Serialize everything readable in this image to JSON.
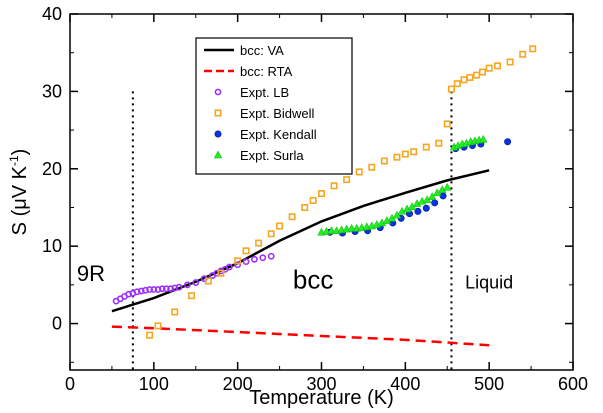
{
  "chart_data": {
    "type": "scatter",
    "xlabel": "Temperature (K)",
    "ylabel": "S (μV K⁻¹)",
    "ylabel_parts": {
      "main": "S (μV K",
      "sup": "-1",
      "close": ")"
    },
    "xlim": [
      0,
      600
    ],
    "ylim": [
      -6,
      40
    ],
    "x_ticks": [
      0,
      100,
      200,
      300,
      400,
      500,
      600
    ],
    "y_ticks": [
      0,
      10,
      20,
      30,
      40
    ],
    "x_tick_labels": [
      "0",
      "100",
      "200",
      "300",
      "400",
      "500",
      "600"
    ],
    "y_tick_labels": [
      "0",
      "10",
      "20",
      "30",
      "40"
    ],
    "grid": false,
    "legend_position": "top-center",
    "vlines": [
      75,
      455
    ],
    "region_labels": [
      {
        "text": "9R",
        "x": 25,
        "y": 5.5
      },
      {
        "text": "bcc",
        "x": 290,
        "y": 4.5
      },
      {
        "text": "Liquid",
        "x": 500,
        "y": 4.5
      }
    ],
    "series": [
      {
        "name": "bcc: VA",
        "kind": "line",
        "color": "#000000",
        "dash": "solid",
        "x": [
          50,
          100,
          150,
          200,
          250,
          300,
          350,
          400,
          450,
          500
        ],
        "y": [
          1.6,
          3.3,
          5.4,
          7.8,
          10.7,
          13.2,
          15.2,
          16.9,
          18.5,
          19.8
        ]
      },
      {
        "name": "bcc: RTA",
        "kind": "line",
        "color": "#ff0000",
        "dash": "dashed",
        "x": [
          50,
          100,
          200,
          300,
          400,
          500
        ],
        "y": [
          -0.4,
          -0.6,
          -1.1,
          -1.6,
          -2.1,
          -2.8
        ]
      },
      {
        "name": "Expt. LB",
        "kind": "scatter",
        "marker": "circle-open",
        "color": "#9b30ff",
        "x": [
          55,
          60,
          65,
          70,
          75,
          80,
          85,
          90,
          95,
          100,
          105,
          110,
          115,
          120,
          125,
          130,
          140,
          150,
          160,
          170,
          175,
          180,
          185,
          190,
          200,
          210,
          220,
          230,
          240
        ],
        "y": [
          2.9,
          3.2,
          3.5,
          3.8,
          3.9,
          4.1,
          4.2,
          4.3,
          4.4,
          4.4,
          4.4,
          4.5,
          4.5,
          4.5,
          4.6,
          4.7,
          5.0,
          5.3,
          5.8,
          6.2,
          6.5,
          6.8,
          7.0,
          7.3,
          7.6,
          8.0,
          8.3,
          8.5,
          8.7
        ]
      },
      {
        "name": "Expt. Bidwell",
        "kind": "scatter",
        "marker": "square-open",
        "color": "#f5a623",
        "x": [
          95,
          105,
          125,
          145,
          165,
          180,
          200,
          210,
          225,
          240,
          250,
          265,
          280,
          290,
          300,
          315,
          330,
          345,
          360,
          375,
          390,
          400,
          410,
          425,
          440,
          450,
          455,
          462,
          470,
          477,
          485,
          492,
          500,
          510,
          525,
          540,
          552
        ],
        "y": [
          -1.5,
          -0.3,
          1.5,
          3.6,
          5.5,
          6.5,
          8.1,
          9.4,
          10.4,
          11.6,
          12.6,
          13.8,
          15.0,
          15.9,
          16.8,
          17.8,
          18.6,
          19.6,
          20.2,
          21.0,
          21.5,
          21.9,
          22.2,
          22.8,
          23.3,
          25.8,
          30.3,
          31.0,
          31.5,
          31.8,
          32.1,
          32.5,
          33.0,
          33.3,
          33.8,
          34.8,
          35.5
        ]
      },
      {
        "name": "Expt. Kendall",
        "kind": "scatter",
        "marker": "circle-filled",
        "color": "#0a33e8",
        "x": [
          310,
          325,
          340,
          355,
          370,
          385,
          395,
          405,
          415,
          425,
          435,
          445,
          460,
          470,
          480,
          490,
          522
        ],
        "y": [
          11.8,
          11.7,
          11.9,
          12.0,
          12.4,
          13.0,
          13.6,
          14.2,
          14.5,
          14.9,
          15.6,
          16.5,
          22.6,
          22.8,
          23.0,
          23.2,
          23.5
        ]
      },
      {
        "name": "Expt. Surla",
        "kind": "scatter",
        "marker": "triangle-filled",
        "color": "#22ee22",
        "x": [
          300,
          306,
          312,
          318,
          324,
          330,
          336,
          342,
          348,
          354,
          360,
          366,
          372,
          378,
          384,
          390,
          396,
          402,
          408,
          414,
          420,
          426,
          432,
          438,
          444,
          450,
          458,
          463,
          468,
          473,
          478,
          483,
          488,
          493
        ],
        "y": [
          11.8,
          11.9,
          12.0,
          12.0,
          12.1,
          12.2,
          12.3,
          12.3,
          12.4,
          12.5,
          12.6,
          12.8,
          13.0,
          13.3,
          13.6,
          14.0,
          14.5,
          14.8,
          15.1,
          15.5,
          15.8,
          16.0,
          16.4,
          16.9,
          17.3,
          17.6,
          22.8,
          23.0,
          23.2,
          23.3,
          23.5,
          23.6,
          23.7,
          23.8
        ]
      }
    ]
  }
}
